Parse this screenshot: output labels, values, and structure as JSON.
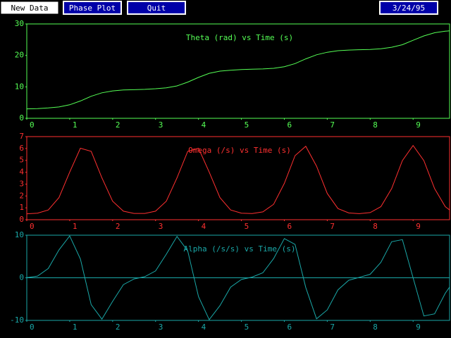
{
  "buttons": [
    "New Data",
    "Phase Plot",
    "Quit"
  ],
  "date": "3/24/95",
  "chart_data": [
    {
      "type": "line",
      "title": "Theta (rad) vs Time (s)",
      "x": [
        0,
        0.25,
        0.5,
        0.75,
        1,
        1.25,
        1.5,
        1.75,
        2,
        2.25,
        2.5,
        2.75,
        3,
        3.25,
        3.5,
        3.75,
        4,
        4.25,
        4.5,
        4.75,
        5,
        5.25,
        5.5,
        5.75,
        6,
        6.25,
        6.5,
        6.75,
        7,
        7.25,
        7.5,
        7.75,
        8,
        8.25,
        8.5,
        8.75,
        9,
        9.25,
        9.5,
        9.75,
        9.85
      ],
      "series": [
        {
          "name": "Theta",
          "color": "#55ff55",
          "values": [
            3.0,
            3.1,
            3.3,
            3.6,
            4.3,
            5.5,
            7.0,
            8.1,
            8.7,
            9.0,
            9.1,
            9.2,
            9.4,
            9.7,
            10.3,
            11.5,
            13.0,
            14.3,
            15.0,
            15.3,
            15.5,
            15.6,
            15.7,
            15.9,
            16.4,
            17.4,
            18.9,
            20.2,
            21.0,
            21.5,
            21.7,
            21.8,
            21.9,
            22.1,
            22.6,
            23.4,
            24.8,
            26.2,
            27.2,
            27.7,
            27.8
          ]
        }
      ],
      "xlim": [
        0,
        9.85
      ],
      "xticks": [
        0,
        1,
        2,
        3,
        4,
        5,
        6,
        7,
        8,
        9
      ],
      "ylim": [
        0,
        30
      ],
      "yticks": [
        0,
        10,
        20,
        30
      ],
      "zero_line": false
    },
    {
      "type": "line",
      "title": "Omega (/s) vs Time (s)",
      "x": [
        0,
        0.25,
        0.5,
        0.75,
        1,
        1.25,
        1.5,
        1.75,
        2,
        2.25,
        2.5,
        2.75,
        3,
        3.25,
        3.5,
        3.75,
        4,
        4.25,
        4.5,
        4.75,
        5,
        5.25,
        5.5,
        5.75,
        6,
        6.25,
        6.5,
        6.75,
        7,
        7.25,
        7.5,
        7.75,
        8,
        8.25,
        8.5,
        8.75,
        9,
        9.25,
        9.5,
        9.75,
        9.85
      ],
      "series": [
        {
          "name": "Omega",
          "color": "#ff3030",
          "values": [
            0.5,
            0.55,
            0.82,
            1.86,
            4.01,
            6.02,
            5.76,
            3.53,
            1.56,
            0.72,
            0.53,
            0.53,
            0.72,
            1.56,
            3.53,
            5.76,
            6.02,
            4.01,
            1.86,
            0.82,
            0.55,
            0.52,
            0.66,
            1.3,
            3.06,
            5.4,
            6.19,
            4.51,
            2.21,
            0.94,
            0.57,
            0.51,
            0.6,
            1.1,
            2.62,
            4.98,
            6.25,
            4.98,
            2.62,
            1.1,
            0.82
          ]
        }
      ],
      "xlim": [
        0,
        9.85
      ],
      "xticks": [
        0,
        1,
        2,
        3,
        4,
        5,
        6,
        7,
        8,
        9
      ],
      "ylim": [
        0,
        7
      ],
      "yticks": [
        0,
        1,
        2,
        3,
        4,
        5,
        6,
        7
      ],
      "zero_line": false
    },
    {
      "type": "line",
      "title": "Alpha (/s/s) vs Time (s)",
      "x": [
        0,
        0.25,
        0.5,
        0.75,
        1,
        1.25,
        1.5,
        1.75,
        2,
        2.25,
        2.5,
        2.75,
        3,
        3.25,
        3.5,
        3.75,
        4,
        4.25,
        4.5,
        4.75,
        5,
        5.25,
        5.5,
        5.75,
        6,
        6.25,
        6.5,
        6.75,
        7,
        7.25,
        7.5,
        7.75,
        8,
        8.25,
        8.5,
        8.75,
        9,
        9.25,
        9.5,
        9.75,
        9.85
      ],
      "series": [
        {
          "name": "Alpha",
          "color": "#1aa8a8",
          "values": [
            0.04,
            0.4,
            2.19,
            6.54,
            9.82,
            4.42,
            -6.31,
            -9.7,
            -5.53,
            -1.61,
            -0.26,
            0.26,
            1.61,
            5.53,
            9.7,
            6.31,
            -4.42,
            -9.82,
            -6.54,
            -2.19,
            -0.4,
            0.17,
            1.18,
            4.51,
            9.21,
            7.84,
            -2.28,
            -9.63,
            -7.54,
            -2.83,
            -0.58,
            0.11,
            0.83,
            3.62,
            8.46,
            8.96,
            0,
            -8.96,
            -8.46,
            -3.62,
            -2.19
          ]
        }
      ],
      "xlim": [
        0,
        9.85
      ],
      "xticks": [
        0,
        1,
        2,
        3,
        4,
        5,
        6,
        7,
        8,
        9
      ],
      "ylim": [
        -10,
        10
      ],
      "yticks": [
        -10,
        0,
        10
      ],
      "zero_line": true
    }
  ]
}
